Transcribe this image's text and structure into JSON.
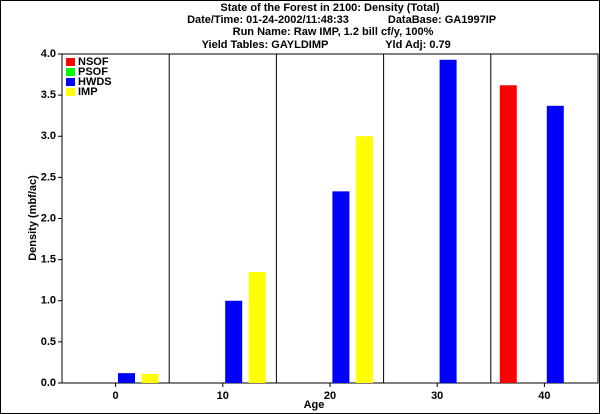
{
  "chart_data": {
    "type": "bar",
    "title": "State of the Forest in 2100: Density (Total)",
    "subtitle": [
      "Date/Time: 01-24-2002/11:48:33",
      "DataBase: GA1997IP",
      "Run Name: Raw IMP, 1.2 bill cf/y, 100%",
      "Yield Tables: GAYLDIMP",
      "Yld Adj: 0.79"
    ],
    "x_label": "Age",
    "y_label": "Density (mbf/ac)",
    "categories": [
      "0",
      "10",
      "20",
      "30",
      "40"
    ],
    "series": [
      {
        "name": "NSOF",
        "color": "#ff0000",
        "values": [
          null,
          null,
          null,
          null,
          3.62
        ]
      },
      {
        "name": "PSOF",
        "color": "#00ff00",
        "values": [
          null,
          null,
          null,
          null,
          null
        ]
      },
      {
        "name": "HWDS",
        "color": "#0000ff",
        "values": [
          0.12,
          1.0,
          2.33,
          3.93,
          3.37
        ]
      },
      {
        "name": "IMP",
        "color": "#ffff00",
        "values": [
          0.11,
          1.35,
          3.0,
          null,
          null
        ]
      }
    ],
    "ylim": [
      0,
      4
    ],
    "yticks": [
      {
        "value": 0,
        "label": "0.0"
      },
      {
        "value": 0.5,
        "label": "0.5"
      },
      {
        "value": 1,
        "label": "1.0"
      },
      {
        "value": 1.5,
        "label": "1.5"
      },
      {
        "value": 2,
        "label": "2.0"
      },
      {
        "value": 2.5,
        "label": "2.5"
      },
      {
        "value": 3,
        "label": "3.0"
      },
      {
        "value": 3.5,
        "label": "3.5"
      },
      {
        "value": 4,
        "label": "4.0"
      }
    ],
    "legend": "top-left"
  }
}
